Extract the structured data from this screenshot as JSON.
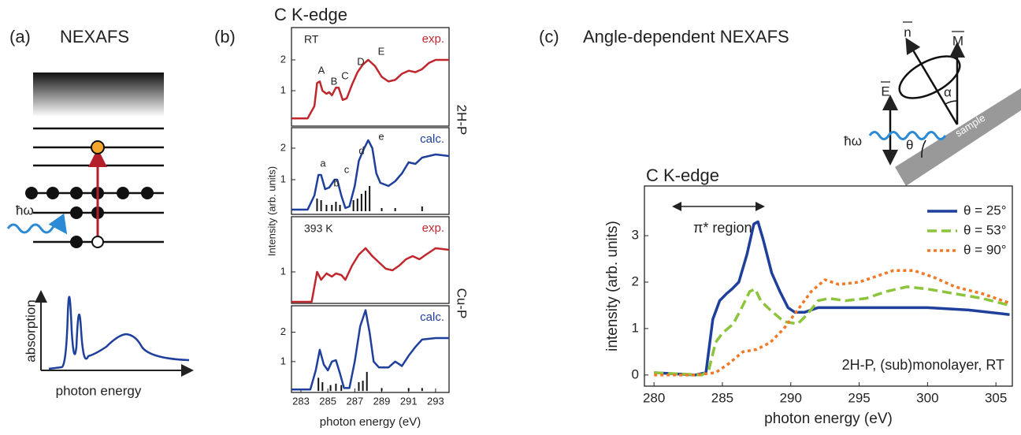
{
  "panel_a": {
    "label": "(a)",
    "title": "NEXAFS",
    "photon": "ħω",
    "y_label": "absorption",
    "x_label": "photon energy"
  },
  "panel_b": {
    "label": "(b)",
    "title": "C K-edge",
    "y_label": "Intensity (arb. units)",
    "sample_labels": [
      "2H-P",
      "Cu-P"
    ]
  },
  "panel_c": {
    "label": "(c)",
    "title": "Angle-dependent NEXAFS",
    "diagram": {
      "n": "n",
      "M": "M",
      "E": "E",
      "photon": "ħω",
      "theta": "θ",
      "alpha": "α",
      "sample": "sample"
    }
  },
  "chart_data": [
    {
      "type": "line",
      "xlim": [
        282.3,
        294
      ],
      "ylim": [
        -0.15,
        3.05
      ],
      "yticks": [
        1,
        2
      ],
      "annotation": "RT",
      "peak_labels": [
        "A",
        "B",
        "C",
        "D",
        "E"
      ],
      "x": [
        282.3,
        283.5,
        284.0,
        284.2,
        284.4,
        284.6,
        284.9,
        285.1,
        285.3,
        285.6,
        285.8,
        286.1,
        286.4,
        286.8,
        287.2,
        287.6,
        288.0,
        288.5,
        289.0,
        289.5,
        290.0,
        290.5,
        291.0,
        291.5,
        292.0,
        292.5,
        293.0,
        294
      ],
      "series": [
        {
          "name": "exp.",
          "color": "#c0272d",
          "values": [
            0.1,
            0.1,
            0.5,
            1.25,
            1.3,
            1.0,
            0.9,
            0.95,
            0.85,
            1.1,
            1.1,
            0.7,
            0.75,
            1.2,
            1.6,
            1.85,
            2.0,
            1.8,
            1.45,
            1.3,
            1.35,
            1.55,
            1.65,
            1.6,
            1.7,
            1.9,
            2.0,
            2.0
          ]
        }
      ]
    },
    {
      "type": "line",
      "xlim": [
        282.3,
        294
      ],
      "ylim": [
        -0.1,
        2.65
      ],
      "yticks": [
        1,
        2
      ],
      "peak_labels": [
        "a",
        "b",
        "c",
        "d",
        "e"
      ],
      "x": [
        282.3,
        283.5,
        284.0,
        284.3,
        284.5,
        284.8,
        285.1,
        285.5,
        285.7,
        286.0,
        286.3,
        286.6,
        287.0,
        287.3,
        287.7,
        288.0,
        288.3,
        288.6,
        288.9,
        289.5,
        290.0,
        290.5,
        291.0,
        291.5,
        292.0,
        293.0,
        294
      ],
      "series": [
        {
          "name": "calc.",
          "color": "#1f3f9c",
          "values": [
            0.05,
            0.05,
            0.5,
            1.15,
            1.15,
            0.7,
            0.75,
            1.0,
            1.0,
            0.5,
            0.1,
            0.15,
            0.8,
            1.6,
            2.0,
            2.25,
            2.0,
            1.2,
            0.9,
            0.8,
            0.95,
            1.2,
            1.55,
            1.5,
            1.7,
            1.8,
            1.75
          ]
        }
      ],
      "sticks": {
        "x": [
          284.2,
          284.5,
          284.9,
          285.3,
          285.6,
          285.9,
          286.9,
          287.2,
          287.5,
          287.8,
          288.1,
          289.0,
          290.0,
          292.0
        ],
        "values": [
          0.4,
          0.35,
          0.2,
          0.2,
          0.3,
          0.2,
          0.35,
          0.4,
          0.55,
          0.65,
          0.8,
          0.1,
          0.1,
          0.15
        ]
      }
    },
    {
      "type": "line",
      "xlim": [
        282.3,
        294
      ],
      "ylim": [
        0,
        2.75
      ],
      "yticks": [
        1
      ],
      "annotation": "393 K",
      "x": [
        282.3,
        283.8,
        284.2,
        284.5,
        284.9,
        285.3,
        285.6,
        286.0,
        286.3,
        286.8,
        287.3,
        287.8,
        288.3,
        288.8,
        289.3,
        289.8,
        290.3,
        290.8,
        291.3,
        291.8,
        292.3,
        293.0,
        294
      ],
      "series": [
        {
          "name": "exp.",
          "color": "#c0272d",
          "values": [
            0.05,
            0.05,
            1.0,
            0.75,
            0.95,
            0.85,
            0.95,
            0.9,
            0.75,
            1.2,
            1.55,
            1.75,
            1.5,
            1.3,
            1.1,
            1.05,
            1.2,
            1.4,
            1.5,
            1.4,
            1.55,
            1.75,
            1.7
          ]
        }
      ]
    },
    {
      "type": "line",
      "xlim": [
        282.3,
        294
      ],
      "ylim": [
        -0.05,
        2.9
      ],
      "yticks": [
        1,
        2
      ],
      "xticks": [
        283,
        285,
        287,
        289,
        291,
        293
      ],
      "xlabel": "photon energy (eV)",
      "x": [
        282.3,
        283.7,
        284.1,
        284.4,
        284.7,
        285.0,
        285.3,
        285.6,
        285.9,
        286.2,
        286.6,
        287.0,
        287.4,
        287.8,
        288.1,
        288.4,
        288.8,
        289.5,
        290.0,
        290.5,
        291.0,
        291.5,
        292.0,
        293,
        294
      ],
      "series": [
        {
          "name": "calc.",
          "color": "#1f3f9c",
          "values": [
            0.05,
            0.05,
            0.7,
            1.4,
            0.9,
            0.7,
            1.0,
            1.05,
            0.6,
            0.1,
            0.1,
            1.0,
            2.2,
            2.75,
            2.0,
            1.0,
            0.8,
            0.8,
            1.0,
            0.85,
            1.2,
            1.5,
            1.75,
            1.8,
            1.8
          ]
        }
      ],
      "sticks": {
        "x": [
          284.3,
          284.6,
          285.2,
          285.6,
          286.0,
          287.3,
          287.6,
          287.9,
          289.0,
          291.0,
          292.0
        ],
        "values": [
          0.45,
          0.3,
          0.2,
          0.25,
          0.2,
          0.3,
          0.35,
          0.65,
          0.1,
          0.1,
          0.1
        ]
      }
    },
    {
      "type": "line",
      "title": "C K-edge",
      "xlabel": "photon energy (eV)",
      "ylabel": "intensity (arb. units)",
      "xlim": [
        279.3,
        306.2
      ],
      "ylim": [
        -0.24,
        4.07
      ],
      "xticks": [
        280,
        285,
        290,
        295,
        300,
        305
      ],
      "yticks": [
        0,
        1,
        2,
        3
      ],
      "legend": "upper right",
      "annotations": [
        "π* region",
        "2H-P, (sub)monolayer, RT"
      ],
      "series": [
        {
          "name": "θ = 25°",
          "color": "#1f3f9c",
          "linestyle": "solid",
          "x": [
            280,
            283,
            283.8,
            284.3,
            284.8,
            285.3,
            285.7,
            286.2,
            286.8,
            287.3,
            287.6,
            288.0,
            288.6,
            289.2,
            289.8,
            290.3,
            291,
            292,
            293,
            295,
            298,
            300,
            303,
            306
          ],
          "values": [
            0.05,
            0.0,
            0.05,
            1.2,
            1.6,
            1.75,
            1.85,
            2.0,
            2.6,
            3.25,
            3.3,
            2.9,
            2.2,
            1.8,
            1.45,
            1.35,
            1.35,
            1.45,
            1.45,
            1.45,
            1.45,
            1.45,
            1.4,
            1.3
          ]
        },
        {
          "name": "θ = 53°",
          "color": "#8cc43c",
          "linestyle": "dashed",
          "x": [
            280,
            283.5,
            284.0,
            284.5,
            285.0,
            285.8,
            286.5,
            287.0,
            287.4,
            287.8,
            288.5,
            289.5,
            290.5,
            291.2,
            292.0,
            292.8,
            294,
            295.5,
            297,
            298.5,
            300,
            302,
            304,
            306
          ],
          "values": [
            0.05,
            0.0,
            0.1,
            0.7,
            0.9,
            1.1,
            1.5,
            1.8,
            1.85,
            1.6,
            1.4,
            1.15,
            1.1,
            1.3,
            1.6,
            1.65,
            1.6,
            1.65,
            1.8,
            1.9,
            1.85,
            1.75,
            1.65,
            1.5
          ]
        },
        {
          "name": "θ = 90°",
          "color": "#f07a28",
          "linestyle": "dotted",
          "x": [
            280,
            283,
            284.5,
            285.5,
            286.5,
            287.5,
            288.5,
            289.5,
            290.5,
            291.5,
            292.5,
            293.5,
            295,
            296.5,
            297.5,
            299,
            300.5,
            302,
            304,
            306
          ],
          "values": [
            0.0,
            0.0,
            0.05,
            0.25,
            0.5,
            0.55,
            0.7,
            1.0,
            1.4,
            1.8,
            2.05,
            1.95,
            2.0,
            2.15,
            2.25,
            2.25,
            2.1,
            1.9,
            1.75,
            1.55
          ]
        }
      ]
    }
  ]
}
